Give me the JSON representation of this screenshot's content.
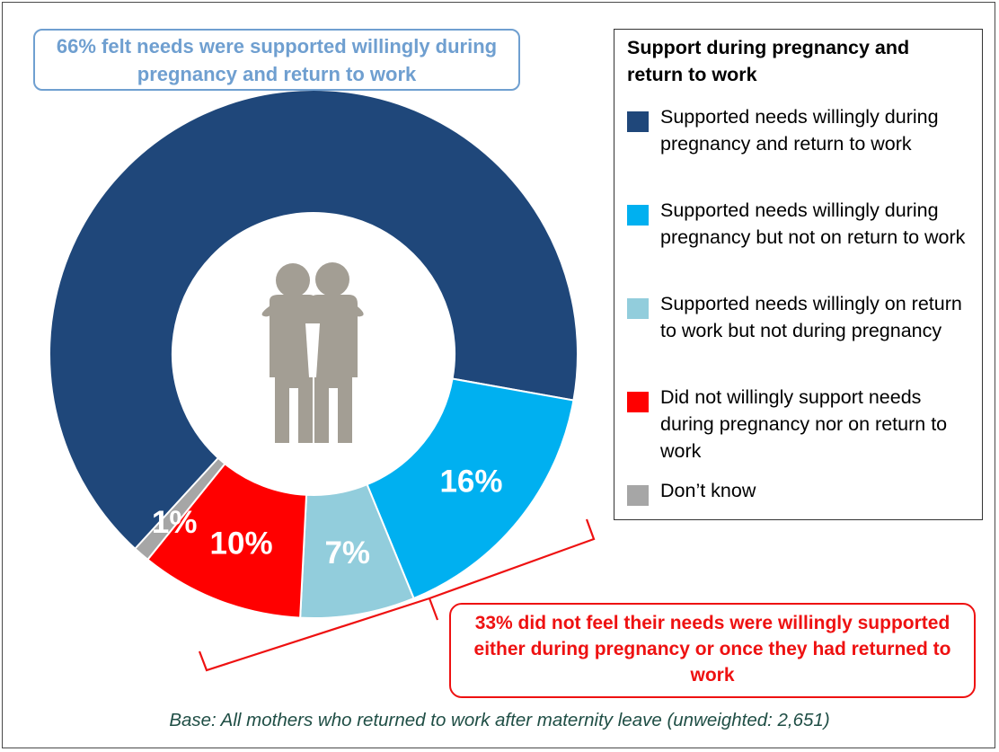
{
  "chart_data": {
    "type": "pie",
    "title": "Support during pregnancy and return to work",
    "donut": true,
    "slices": [
      {
        "label": "Supported needs willingly during pregnancy and return to work",
        "value": 66,
        "value_label": "66%",
        "color": "#1f477a"
      },
      {
        "label": "Supported needs willingly during pregnancy but not on return to work",
        "value": 16,
        "value_label": "16%",
        "color": "#00b0f0"
      },
      {
        "label": "Supported needs willingly on return to work but not during pregnancy",
        "value": 7,
        "value_label": "7%",
        "color": "#92cddc"
      },
      {
        "label": "Did not willingly support needs during pregnancy nor on return to work",
        "value": 10,
        "value_label": "10%",
        "color": "#ff0000"
      },
      {
        "label": "Don’t know",
        "value": 1,
        "value_label": "1%",
        "color": "#a6a6a6"
      }
    ],
    "legend_placement": "right"
  },
  "legend": {
    "title": "Support during pregnancy and return to work",
    "items": [
      {
        "label": "Supported needs willingly during pregnancy and return to work",
        "color": "#1f477a"
      },
      {
        "label": "Supported needs willingly during pregnancy but not on return to work",
        "color": "#00b0f0"
      },
      {
        "label": "Supported needs willingly on return to work but not during pregnancy",
        "color": "#92cddc"
      },
      {
        "label": "Did not willingly support needs during pregnancy nor on return to work",
        "color": "#ff0000"
      },
      {
        "label": "Don’t know",
        "color": "#a6a6a6"
      }
    ]
  },
  "callouts": {
    "top": "66% felt needs were supported willingly during pregnancy and return to work",
    "bottom": "33% did not feel their needs were willingly supported either during pregnancy or once they had returned to work"
  },
  "base_note": "Base: All mothers who returned to work after maternity leave (unweighted: 2,651)",
  "center_icon": "embracing-people-icon",
  "colors": {
    "top_callout": "#6f9fd0",
    "bottom_callout": "#ee1111",
    "icon": "#a39e94",
    "base_note": "#1f4e45"
  }
}
